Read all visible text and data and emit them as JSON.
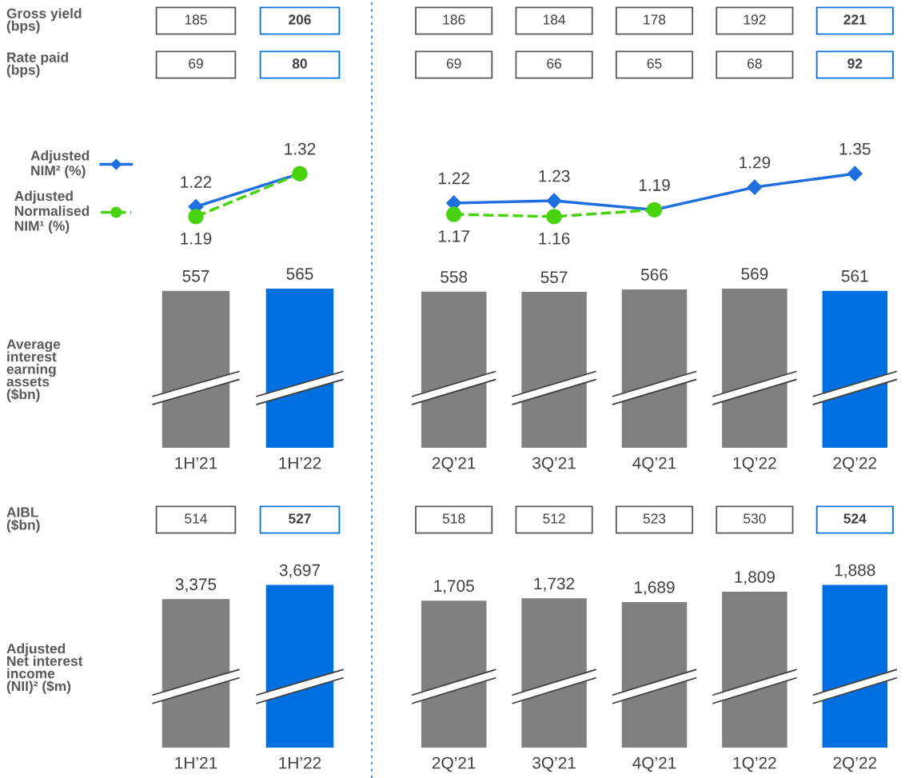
{
  "chart_data": [
    {
      "type": "other",
      "title": "Gross yield\n(bps)",
      "categories": [
        null,
        null
      ],
      "values": [
        185,
        206
      ],
      "colors": [
        "#595959",
        "#0070e0"
      ],
      "data_labels": true
    },
    {
      "type": "other",
      "categories": [
        null,
        null,
        null,
        null,
        null
      ],
      "values": [
        186,
        184,
        178,
        192,
        221
      ],
      "colors": [
        "#595959",
        "#595959",
        "#595959",
        "#595959",
        "#0070e0"
      ],
      "data_labels": true
    },
    {
      "type": "other",
      "title": "Rate paid\n(bps)",
      "categories": [
        null,
        null
      ],
      "values": [
        69,
        80
      ],
      "colors": [
        "#595959",
        "#0070e0"
      ],
      "data_labels": true
    },
    {
      "type": "other",
      "categories": [
        null,
        null,
        null,
        null,
        null
      ],
      "values": [
        69,
        66,
        65,
        68,
        92
      ],
      "colors": [
        "#595959",
        "#595959",
        "#595959",
        "#595959",
        "#0070e0"
      ],
      "data_labels": true
    },
    {
      "type": "line",
      "categories": [
        null,
        null
      ],
      "legend": "left",
      "series": [
        {
          "name": "Adjusted\nNIM² (%)",
          "color": "#1f6fe0",
          "values": [
            1.22,
            1.32
          ],
          "marker": "diamond",
          "line_style": "solid",
          "value_labels": [
            "1.22",
            "1.32"
          ]
        },
        {
          "name": "Adjusted\nNormalised\nNIM¹ (%)",
          "color": "#47d40f",
          "values": [
            1.19,
            1.32
          ],
          "marker": "circle",
          "line_style": "dashed",
          "value_labels": [
            "1.19",
            null
          ]
        }
      ]
    },
    {
      "type": "line",
      "categories": [
        null,
        null,
        null,
        null,
        null
      ],
      "series": [
        {
          "color": "#1f6fe0",
          "values": [
            1.22,
            1.23,
            1.19,
            1.29,
            1.35
          ],
          "marker": "diamond",
          "line_style": "solid",
          "value_labels": [
            "1.22",
            "1.23",
            "1.19",
            "1.29",
            "1.35"
          ]
        },
        {
          "color": "#47d40f",
          "values": [
            1.17,
            1.16,
            1.19,
            null,
            null
          ],
          "marker": "circle",
          "line_style": "dashed",
          "value_labels": [
            "1.17",
            "1.16",
            null,
            null,
            null
          ]
        }
      ]
    },
    {
      "type": "bar",
      "ylabel": "Average\ninterest\nearning\nassets\n($bn)",
      "categories": [
        "1H’21",
        "1H’22"
      ],
      "values": [
        557,
        565
      ],
      "colors": [
        "#808080",
        "#0070e0"
      ],
      "data_labels": true
    },
    {
      "type": "bar",
      "categories": [
        "2Q’21",
        "3Q’21",
        "4Q’21",
        "1Q’22",
        "2Q’22"
      ],
      "values": [
        558,
        557,
        566,
        569,
        561
      ],
      "colors": [
        "#808080",
        "#808080",
        "#808080",
        "#808080",
        "#0070e0"
      ],
      "data_labels": true
    },
    {
      "type": "other",
      "title": "AIBL\n($bn)",
      "categories": [
        null,
        null
      ],
      "values": [
        514,
        527
      ],
      "colors": [
        "#595959",
        "#0070e0"
      ],
      "data_labels": true
    },
    {
      "type": "other",
      "categories": [
        null,
        null,
        null,
        null,
        null
      ],
      "values": [
        518,
        512,
        523,
        530,
        524
      ],
      "colors": [
        "#595959",
        "#595959",
        "#595959",
        "#595959",
        "#0070e0"
      ],
      "data_labels": true
    },
    {
      "type": "bar",
      "ylabel": "Adjusted\nNet interest\nincome\n(NII)² ($m)",
      "categories": [
        "1H’21",
        "1H’22"
      ],
      "values": [
        3375,
        3697
      ],
      "colors": [
        "#808080",
        "#0070e0"
      ],
      "value_labels": [
        "3,375",
        "3,697"
      ]
    },
    {
      "type": "bar",
      "categories": [
        "2Q’21",
        "3Q’21",
        "4Q’21",
        "1Q’22",
        "2Q’22"
      ],
      "values": [
        1705,
        1732,
        1689,
        1809,
        1888
      ],
      "colors": [
        "#808080",
        "#808080",
        "#808080",
        "#808080",
        "#0070e0"
      ],
      "value_labels": [
        "1,705",
        "1,732",
        "1,689",
        "1,809",
        "1,888"
      ]
    }
  ]
}
